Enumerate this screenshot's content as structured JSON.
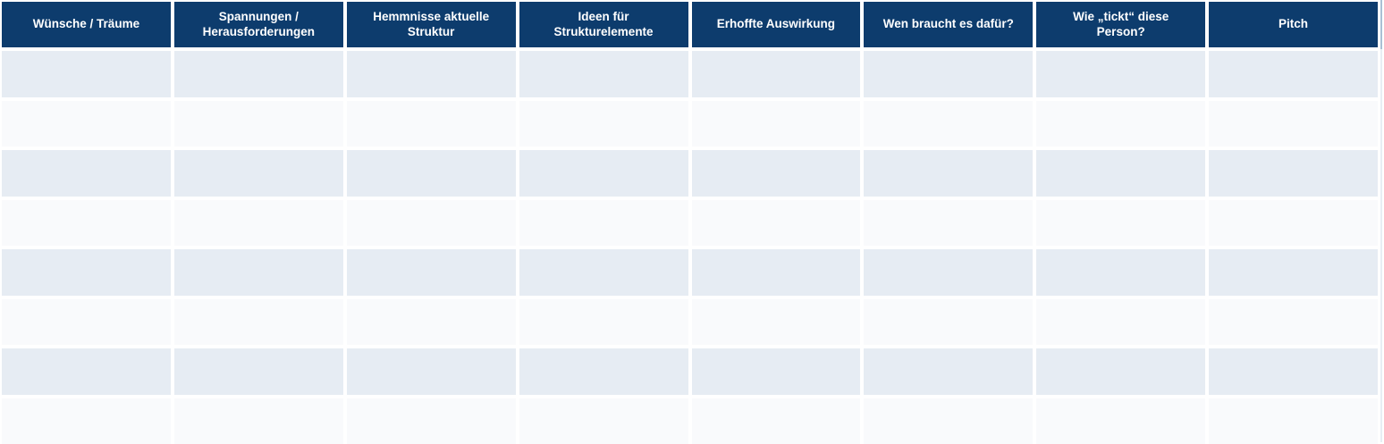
{
  "colors": {
    "background": "#ffffff",
    "header_bg": "#0d3c6d",
    "header_text": "#ffffff",
    "row_shaded_bg": "#e6ecf3",
    "row_plain_bg": "#f9fafc",
    "edge_line_top": "#a9c0d4",
    "edge_line_bottom": "#e7eef4"
  },
  "table": {
    "columns": [
      {
        "label": "Wünsche / Träume"
      },
      {
        "label": "Spannungen / Herausforderungen"
      },
      {
        "label": "Hemmnisse aktuelle Struktur"
      },
      {
        "label": "Ideen für Strukturelemente"
      },
      {
        "label": "Erhoffte Auswirkung"
      },
      {
        "label": "Wen braucht es dafür?"
      },
      {
        "label": "Wie „tickt“ diese Person?"
      },
      {
        "label": "Pitch"
      }
    ],
    "rows": [
      [
        "",
        "",
        "",
        "",
        "",
        "",
        "",
        ""
      ],
      [
        "",
        "",
        "",
        "",
        "",
        "",
        "",
        ""
      ],
      [
        "",
        "",
        "",
        "",
        "",
        "",
        "",
        ""
      ],
      [
        "",
        "",
        "",
        "",
        "",
        "",
        "",
        ""
      ],
      [
        "",
        "",
        "",
        "",
        "",
        "",
        "",
        ""
      ],
      [
        "",
        "",
        "",
        "",
        "",
        "",
        "",
        ""
      ],
      [
        "",
        "",
        "",
        "",
        "",
        "",
        "",
        ""
      ],
      [
        "",
        "",
        "",
        "",
        "",
        "",
        "",
        ""
      ]
    ]
  }
}
